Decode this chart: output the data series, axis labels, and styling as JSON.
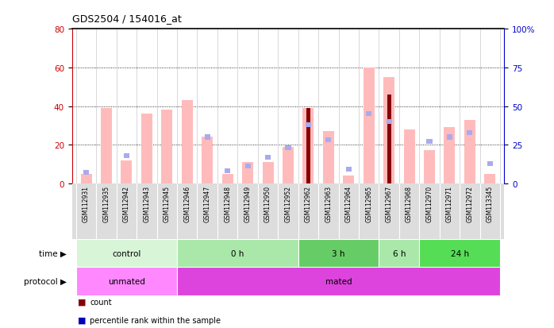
{
  "title": "GDS2504 / 154016_at",
  "samples": [
    "GSM112931",
    "GSM112935",
    "GSM112942",
    "GSM112943",
    "GSM112945",
    "GSM112946",
    "GSM112947",
    "GSM112948",
    "GSM112949",
    "GSM112950",
    "GSM112952",
    "GSM112962",
    "GSM112963",
    "GSM112964",
    "GSM112965",
    "GSM112967",
    "GSM112968",
    "GSM112970",
    "GSM112971",
    "GSM112972",
    "GSM113345"
  ],
  "pink_bars": [
    5,
    39,
    12,
    36,
    38,
    43,
    24,
    5,
    11,
    11,
    19,
    39,
    27,
    4,
    60,
    55,
    28,
    17,
    29,
    33,
    5
  ],
  "blue_squares": [
    7,
    null,
    18,
    null,
    null,
    null,
    30,
    8,
    11,
    17,
    23,
    38,
    28,
    9,
    45,
    40,
    null,
    27,
    30,
    33,
    13
  ],
  "red_bars": [
    null,
    null,
    null,
    null,
    null,
    null,
    null,
    null,
    null,
    null,
    null,
    39,
    null,
    null,
    null,
    46,
    null,
    null,
    null,
    null,
    null
  ],
  "group_list": [
    {
      "label": "control",
      "color": "#d8f5d8",
      "start": 0,
      "end": 5
    },
    {
      "label": "0 h",
      "color": "#aae8aa",
      "start": 5,
      "end": 11
    },
    {
      "label": "3 h",
      "color": "#66cc66",
      "start": 11,
      "end": 15
    },
    {
      "label": "6 h",
      "color": "#aae8aa",
      "start": 15,
      "end": 17
    },
    {
      "label": "24 h",
      "color": "#55dd55",
      "start": 17,
      "end": 21
    }
  ],
  "prot_list": [
    {
      "label": "unmated",
      "color": "#ff88ff",
      "start": 0,
      "end": 5
    },
    {
      "label": "mated",
      "color": "#dd44dd",
      "start": 5,
      "end": 21
    }
  ],
  "ylim_left": [
    0,
    80
  ],
  "ylim_right": [
    0,
    100
  ],
  "yticks_left": [
    0,
    20,
    40,
    60,
    80
  ],
  "yticks_right": [
    0,
    25,
    50,
    75,
    100
  ],
  "ytick_labels_left": [
    "0",
    "20",
    "40",
    "60",
    "80"
  ],
  "ytick_labels_right": [
    "0",
    "25",
    "50",
    "75",
    "100%"
  ],
  "left_axis_color": "#cc0000",
  "right_axis_color": "#0000cc",
  "pink_bar_color": "#ffbbbb",
  "blue_square_color": "#aaaaee",
  "red_bar_color": "#880000",
  "col_sep_color": "#bbbbbb",
  "grid_line_color": "#222222"
}
